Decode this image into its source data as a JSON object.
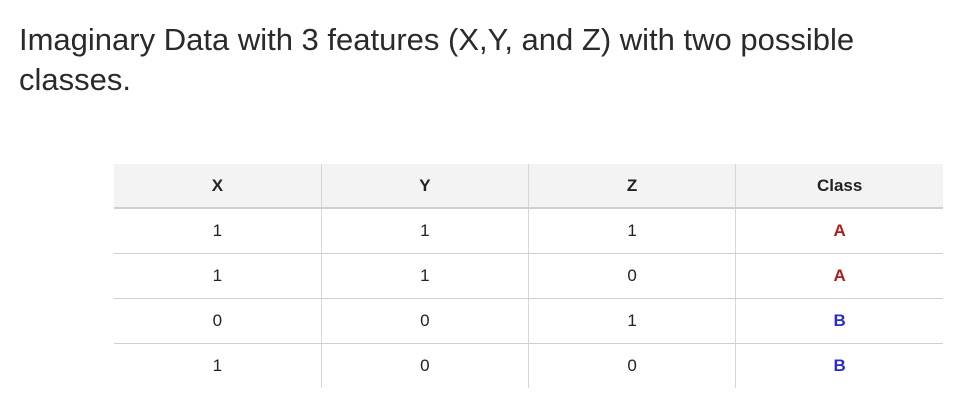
{
  "slide": {
    "title": "Imaginary Data with 3 features (X,Y, and Z) with two possible classes."
  },
  "table": {
    "headers": [
      "X",
      "Y",
      "Z",
      "Class"
    ],
    "rows": [
      {
        "x": "1",
        "y": "1",
        "z": "1",
        "class": "A"
      },
      {
        "x": "1",
        "y": "1",
        "z": "0",
        "class": "A"
      },
      {
        "x": "0",
        "y": "0",
        "z": "1",
        "class": "B"
      },
      {
        "x": "1",
        "y": "0",
        "z": "0",
        "class": "B"
      }
    ]
  },
  "colors": {
    "class_A": "#b01c1c",
    "class_B": "#2b2bc9",
    "header_bg": "#f3f3f3",
    "grid": "#d6d6d6"
  }
}
